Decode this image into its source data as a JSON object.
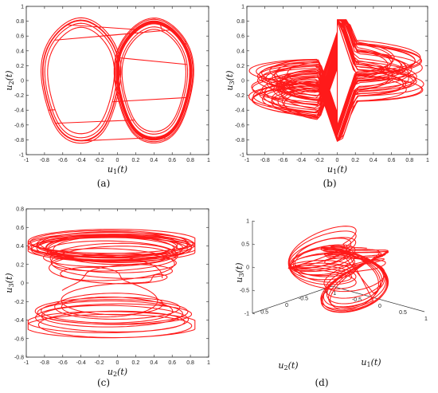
{
  "chart_data": [
    {
      "panel": "(a)",
      "type": "line",
      "xlabel": "u1(t)",
      "ylabel": "u2(t)",
      "xlim": [
        -1,
        1
      ],
      "ylim": [
        -1,
        1
      ],
      "xticks": [
        "-1",
        "-0.8",
        "-0.6",
        "-0.4",
        "-0.2",
        "0",
        "0.2",
        "0.4",
        "0.6",
        "0.8",
        "1"
      ],
      "yticks": [
        "-1",
        "-0.8",
        "-0.6",
        "-0.4",
        "-0.2",
        "0",
        "0.2",
        "0.4",
        "0.6",
        "0.8",
        "1"
      ],
      "features": {
        "lobe_centers_x": [
          -0.4,
          0.4
        ],
        "hole_x": [
          -0.5,
          -0.28
        ],
        "hole_y": [
          -0.3,
          0.3
        ],
        "outer_x": [
          -0.98,
          0.98
        ],
        "outer_y": [
          -0.85,
          0.85
        ]
      },
      "color": "#ff1a1a"
    },
    {
      "panel": "(b)",
      "type": "line",
      "xlabel": "u1(t)",
      "ylabel": "u3(t)",
      "xlim": [
        -1,
        1
      ],
      "ylim": [
        -1,
        1
      ],
      "xticks": [
        "-1",
        "-0.8",
        "-0.6",
        "-0.4",
        "-0.2",
        "0",
        "0.2",
        "0.4",
        "0.6",
        "0.8",
        "1"
      ],
      "yticks": [
        "-1",
        "-0.8",
        "-0.6",
        "-0.4",
        "-0.2",
        "0",
        "0.2",
        "0.4",
        "0.6",
        "0.8",
        "1"
      ],
      "features": {
        "cusp_top_y": 0.8,
        "cusp_bottom_y": -0.8,
        "x_range": [
          -0.98,
          0.95
        ],
        "band_y_left": [
          -0.55,
          0.1
        ],
        "band_y_right": [
          -0.1,
          0.55
        ]
      },
      "color": "#ff1a1a"
    },
    {
      "panel": "(c)",
      "type": "line",
      "xlabel": "u2(t)",
      "ylabel": "u3(t)",
      "xlim": [
        -1,
        1
      ],
      "ylim": [
        -0.8,
        0.8
      ],
      "xticks": [
        "-1",
        "-0.8",
        "-0.6",
        "-0.4",
        "-0.2",
        "0",
        "0.2",
        "0.4",
        "0.6",
        "0.8",
        "1"
      ],
      "yticks": [
        "-0.8",
        "-0.6",
        "-0.4",
        "-0.2",
        "0",
        "0.2",
        "0.4",
        "0.6",
        "0.8"
      ],
      "features": {
        "x_range": [
          -0.98,
          0.85
        ],
        "y_range": [
          -0.68,
          0.68
        ],
        "waist_x": [
          -0.5,
          0.5
        ]
      },
      "color": "#ff1a1a"
    },
    {
      "panel": "(d)",
      "type": "line",
      "xlabel": "u1(t)",
      "ylabel": "u2(t)",
      "zlabel": "u3(t)",
      "zticks": [
        "-1",
        "-0.5",
        "0",
        "0.5",
        "1"
      ],
      "u2ticks": [
        "0.5",
        "0",
        "-0.5",
        "-1"
      ],
      "u1ticks": [
        "-1",
        "-0.5",
        "0",
        "0.5",
        "1"
      ],
      "color": "#ff1a1a"
    }
  ],
  "labels": {
    "a": "(a)",
    "b": "(b)",
    "c": "(c)",
    "d": "(d)"
  }
}
